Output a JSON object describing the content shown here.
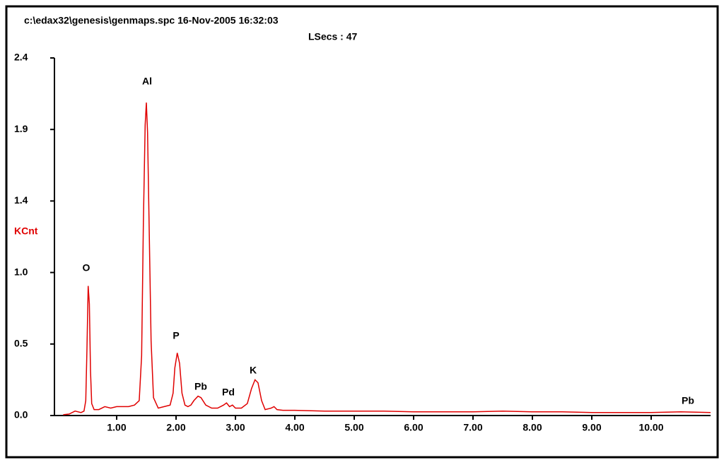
{
  "chart_data": {
    "type": "line",
    "title": "c:\\edax32\\genesis\\genmaps.spc  16-Nov-2005 16:32:03",
    "subtitle": "LSecs :  47",
    "y_label": "KCnt",
    "annotations": [
      "O",
      "Al",
      "P",
      "Pb",
      "Pd",
      "K",
      "Pb"
    ],
    "xlim": [
      0,
      11
    ],
    "ylim": [
      0,
      2.4
    ],
    "xticks": [
      {
        "value": 1,
        "label": "1.00"
      },
      {
        "value": 2,
        "label": "2.00"
      },
      {
        "value": 3,
        "label": "3.00"
      },
      {
        "value": 4,
        "label": "4.00"
      },
      {
        "value": 5,
        "label": "5.00"
      },
      {
        "value": 6,
        "label": "6.00"
      },
      {
        "value": 7,
        "label": "7.00"
      },
      {
        "value": 8,
        "label": "8.00"
      },
      {
        "value": 9,
        "label": "9.00"
      },
      {
        "value": 10,
        "label": "10.00"
      }
    ],
    "yticks": [
      {
        "value": 0,
        "label": "0.0"
      },
      {
        "value": 0.48,
        "label": "0.5"
      },
      {
        "value": 0.96,
        "label": "1.0"
      },
      {
        "value": 1.44,
        "label": "1.4"
      },
      {
        "value": 1.92,
        "label": "1.9"
      },
      2.4
    ],
    "x": [
      0.1,
      0.2,
      0.3,
      0.4,
      0.45,
      0.48,
      0.5,
      0.52,
      0.54,
      0.56,
      0.58,
      0.62,
      0.7,
      0.8,
      0.9,
      1.0,
      1.1,
      1.2,
      1.3,
      1.38,
      1.42,
      1.45,
      1.48,
      1.5,
      1.52,
      1.55,
      1.58,
      1.62,
      1.7,
      1.8,
      1.9,
      1.95,
      1.98,
      2.02,
      2.06,
      2.1,
      2.15,
      2.2,
      2.25,
      2.3,
      2.37,
      2.42,
      2.5,
      2.6,
      2.7,
      2.8,
      2.85,
      2.9,
      2.95,
      3.0,
      3.1,
      3.2,
      3.27,
      3.33,
      3.38,
      3.44,
      3.5,
      3.6,
      3.65,
      3.7,
      3.8,
      4.0,
      4.5,
      5,
      5.5,
      6,
      6.5,
      7,
      7.5,
      8,
      8.5,
      9,
      9.5,
      10,
      10.5,
      11
    ],
    "series": [
      {
        "color": "#e00000",
        "values": [
          0.005,
          0.01,
          0.03,
          0.02,
          0.03,
          0.1,
          0.45,
          0.87,
          0.75,
          0.3,
          0.08,
          0.04,
          0.04,
          0.06,
          0.05,
          0.06,
          0.06,
          0.06,
          0.07,
          0.1,
          0.4,
          1.3,
          1.95,
          2.1,
          1.9,
          1.2,
          0.5,
          0.12,
          0.05,
          0.06,
          0.07,
          0.15,
          0.32,
          0.42,
          0.35,
          0.15,
          0.07,
          0.06,
          0.07,
          0.1,
          0.13,
          0.12,
          0.07,
          0.05,
          0.05,
          0.07,
          0.085,
          0.06,
          0.07,
          0.05,
          0.05,
          0.08,
          0.18,
          0.24,
          0.22,
          0.1,
          0.04,
          0.05,
          0.06,
          0.04,
          0.035,
          0.035,
          0.03,
          0.03,
          0.03,
          0.025,
          0.025,
          0.025,
          0.03,
          0.025,
          0.025,
          0.02,
          0.02,
          0.02,
          0.025,
          0.02
        ]
      }
    ]
  }
}
